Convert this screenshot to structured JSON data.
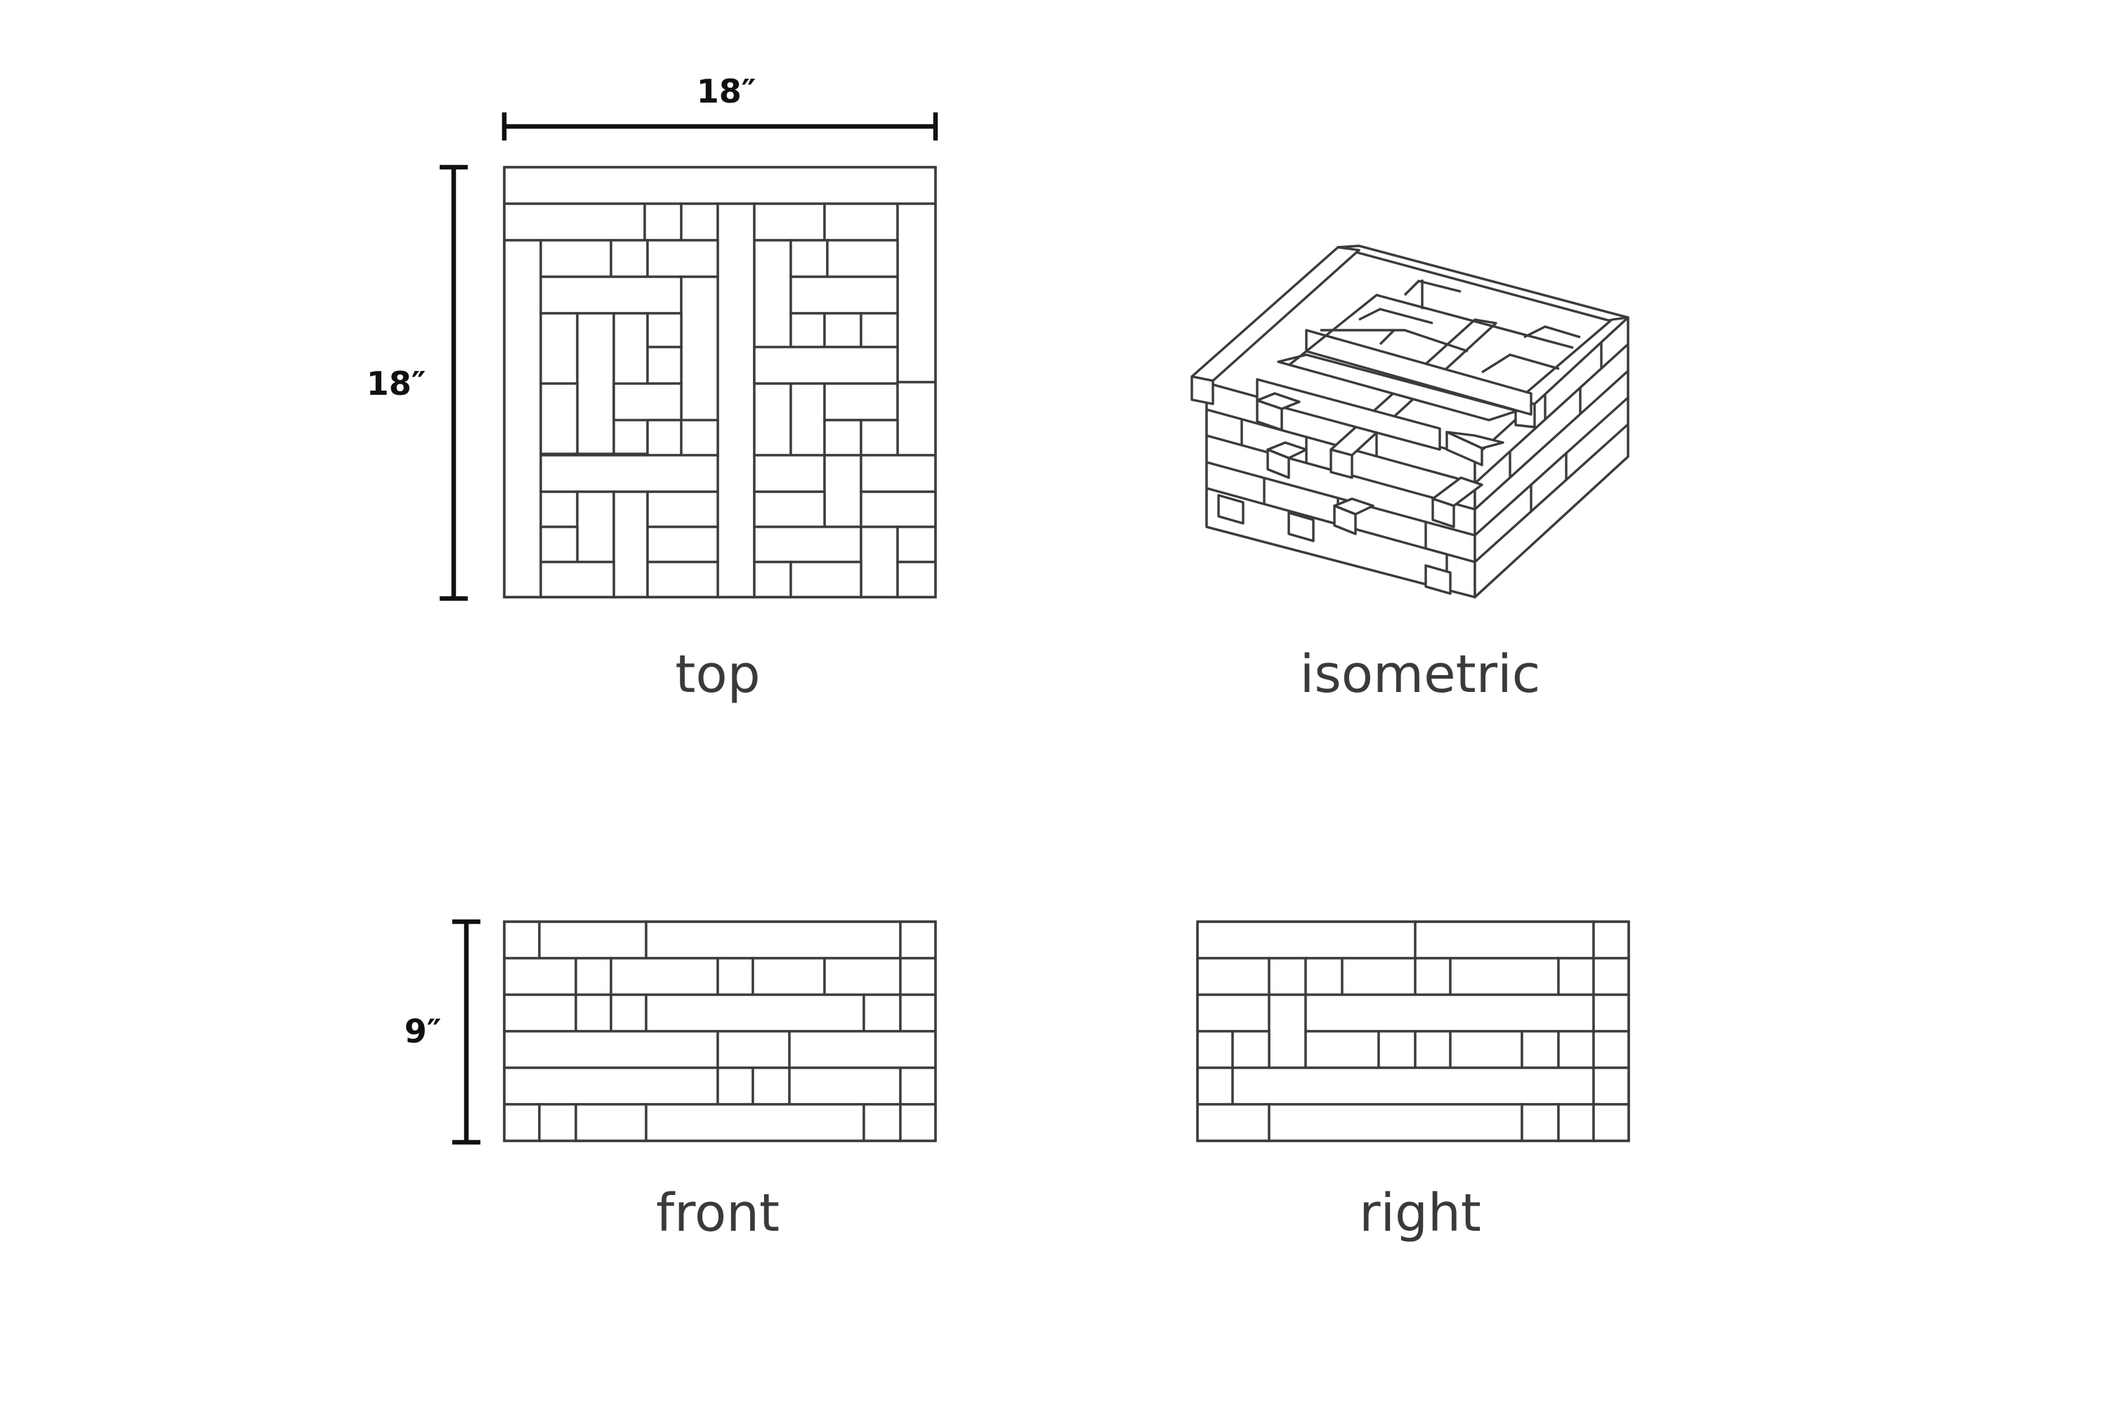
{
  "views": {
    "top": {
      "caption": "top"
    },
    "isometric": {
      "caption": "isometric"
    },
    "front": {
      "caption": "front"
    },
    "right": {
      "caption": "right"
    }
  },
  "dimensions": {
    "top_width": "18″",
    "top_depth": "18″",
    "front_height": "9″"
  },
  "colors": {
    "line": "#3b3b3b",
    "dimension": "#111111",
    "caption": "#3a3a3a",
    "background": "#ffffff"
  }
}
